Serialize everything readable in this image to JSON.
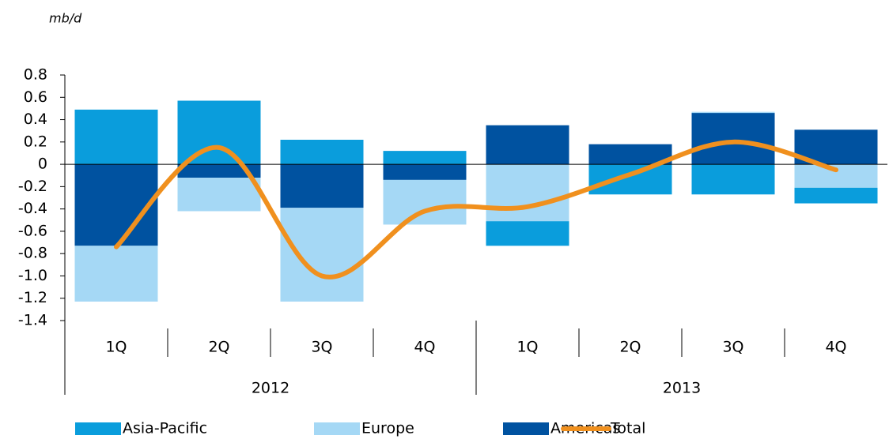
{
  "chart_data": {
    "type": "stacked-bar-line",
    "unit_label": "mb/d",
    "categories": [
      "1Q",
      "2Q",
      "3Q",
      "4Q",
      "1Q",
      "2Q",
      "3Q",
      "4Q"
    ],
    "groups": [
      {
        "label": "2012",
        "span": 4
      },
      {
        "label": "2013",
        "span": 4
      }
    ],
    "series": [
      {
        "name": "Asia-Pacific",
        "color": "#0a9ddc",
        "type": "bar",
        "values": [
          0.49,
          0.57,
          0.22,
          0.12,
          -0.22,
          -0.27,
          -0.27,
          -0.14
        ]
      },
      {
        "name": "Europe",
        "color": "#a5d8f5",
        "type": "bar",
        "values": [
          -0.5,
          -0.3,
          -0.84,
          -0.4,
          -0.51,
          0,
          0.01,
          -0.21
        ]
      },
      {
        "name": "Americas",
        "color": "#0052a0",
        "type": "bar",
        "values": [
          -0.73,
          -0.12,
          -0.39,
          -0.14,
          0.35,
          0.18,
          0.46,
          0.31
        ]
      },
      {
        "name": "Total",
        "color": "#f0901e",
        "type": "line",
        "values": [
          -0.74,
          0.15,
          -1.0,
          -0.42,
          -0.38,
          -0.09,
          0.2,
          -0.05
        ]
      }
    ],
    "ylim": [
      -1.4,
      0.8
    ],
    "yticks": [
      0.8,
      0.6,
      0.4,
      0.2,
      0,
      -0.2,
      -0.4,
      -0.6,
      -0.8,
      {
        "value": -1,
        "label": "-1.0"
      },
      -1.2,
      -1.4
    ],
    "legend": "bottom"
  }
}
